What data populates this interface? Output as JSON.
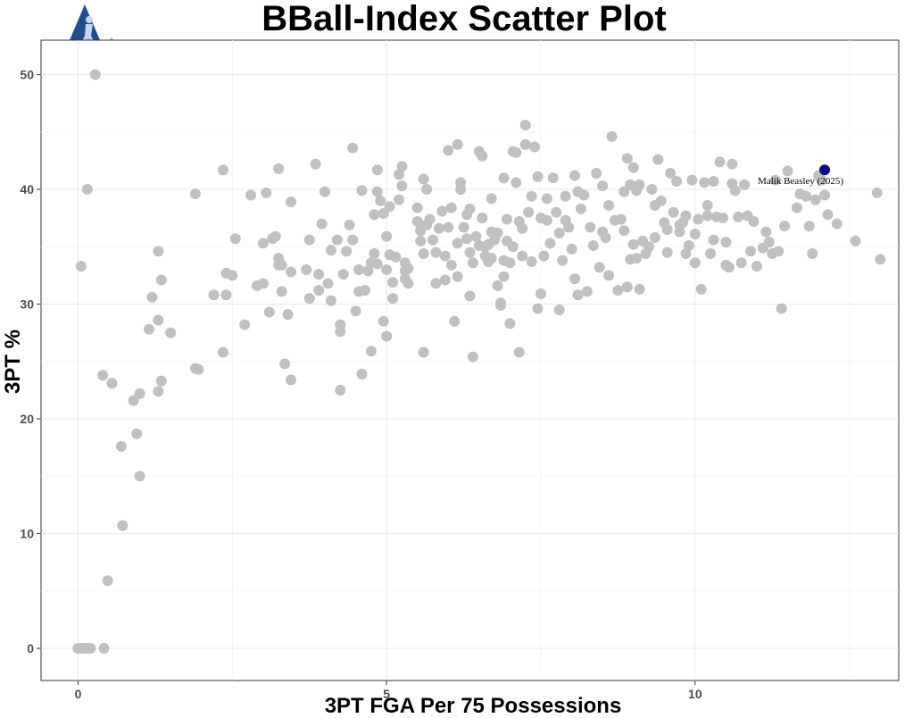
{
  "chart_data": {
    "type": "scatter",
    "title": "BBall-Index Scatter Plot",
    "xlabel": "3PT FGA Per 75 Possessions",
    "ylabel": "3PT %",
    "xlim": [
      -0.6,
      13.3
    ],
    "ylim": [
      -2.8,
      53
    ],
    "x_ticks": [
      0,
      5,
      10
    ],
    "y_ticks": [
      0,
      10,
      20,
      30,
      40,
      50
    ],
    "grid": true,
    "legend": "none",
    "colors": {
      "points": "#c0c0c0",
      "highlight": "#0d0d85",
      "logo_shield": "#1f4e8c",
      "logo_triangle": "#9e9e9e"
    },
    "highlight": {
      "label": "Malik Beasley (2025)",
      "x": 12.1,
      "y": 41.7
    },
    "points": [
      [
        0.0,
        0
      ],
      [
        0.05,
        0
      ],
      [
        0.1,
        0
      ],
      [
        0.15,
        0
      ],
      [
        0.2,
        0
      ],
      [
        0.1,
        0
      ],
      [
        0.42,
        0
      ],
      [
        0.05,
        33.3
      ],
      [
        0.15,
        40.0
      ],
      [
        0.28,
        50.0
      ],
      [
        0.48,
        5.9
      ],
      [
        0.72,
        10.7
      ],
      [
        1.0,
        15.0
      ],
      [
        0.95,
        18.7
      ],
      [
        0.7,
        17.6
      ],
      [
        0.9,
        21.6
      ],
      [
        1.0,
        22.2
      ],
      [
        0.55,
        23.1
      ],
      [
        0.4,
        23.8
      ],
      [
        1.3,
        22.4
      ],
      [
        1.35,
        23.3
      ],
      [
        1.3,
        28.6
      ],
      [
        1.15,
        27.8
      ],
      [
        1.5,
        27.5
      ],
      [
        1.2,
        30.6
      ],
      [
        1.35,
        32.1
      ],
      [
        1.3,
        34.6
      ],
      [
        1.9,
        24.4
      ],
      [
        1.95,
        24.3
      ],
      [
        1.9,
        39.6
      ],
      [
        2.35,
        41.7
      ],
      [
        2.2,
        30.8
      ],
      [
        2.4,
        30.8
      ],
      [
        2.4,
        32.7
      ],
      [
        2.5,
        32.5
      ],
      [
        2.55,
        35.7
      ],
      [
        2.35,
        25.8
      ],
      [
        2.7,
        28.2
      ],
      [
        2.8,
        39.5
      ],
      [
        2.9,
        31.6
      ],
      [
        3.0,
        35.3
      ],
      [
        3.0,
        31.8
      ],
      [
        3.05,
        39.7
      ],
      [
        3.1,
        29.3
      ],
      [
        3.15,
        35.7
      ],
      [
        3.2,
        35.9
      ],
      [
        3.25,
        34.0
      ],
      [
        3.3,
        33.4
      ],
      [
        3.25,
        33.4
      ],
      [
        3.3,
        31.1
      ],
      [
        3.25,
        41.8
      ],
      [
        3.4,
        29.1
      ],
      [
        3.45,
        32.8
      ],
      [
        3.45,
        38.9
      ],
      [
        3.35,
        24.8
      ],
      [
        3.45,
        23.4
      ],
      [
        3.7,
        33.0
      ],
      [
        3.75,
        35.6
      ],
      [
        3.75,
        30.5
      ],
      [
        3.85,
        42.2
      ],
      [
        3.9,
        31.2
      ],
      [
        3.9,
        32.6
      ],
      [
        3.95,
        37.0
      ],
      [
        4.0,
        39.8
      ],
      [
        4.05,
        31.8
      ],
      [
        4.1,
        30.3
      ],
      [
        4.1,
        34.7
      ],
      [
        4.2,
        35.6
      ],
      [
        4.25,
        27.6
      ],
      [
        4.25,
        28.2
      ],
      [
        4.25,
        22.5
      ],
      [
        4.3,
        32.6
      ],
      [
        4.35,
        34.6
      ],
      [
        4.4,
        36.9
      ],
      [
        4.45,
        35.6
      ],
      [
        4.45,
        43.6
      ],
      [
        4.5,
        29.4
      ],
      [
        4.55,
        31.1
      ],
      [
        4.55,
        33.0
      ],
      [
        4.6,
        39.9
      ],
      [
        4.6,
        23.9
      ],
      [
        4.65,
        31.2
      ],
      [
        4.7,
        32.9
      ],
      [
        4.75,
        25.9
      ],
      [
        4.75,
        33.6
      ],
      [
        4.8,
        34.4
      ],
      [
        4.85,
        33.5
      ],
      [
        4.8,
        37.8
      ],
      [
        4.85,
        39.8
      ],
      [
        4.85,
        41.7
      ],
      [
        4.9,
        39.0
      ],
      [
        4.95,
        37.9
      ],
      [
        4.95,
        28.5
      ],
      [
        5.0,
        27.2
      ],
      [
        5.0,
        35.9
      ],
      [
        5.0,
        33.0
      ],
      [
        5.05,
        38.5
      ],
      [
        5.1,
        31.9
      ],
      [
        5.05,
        34.3
      ],
      [
        5.1,
        30.5
      ],
      [
        5.15,
        34.1
      ],
      [
        5.2,
        39.1
      ],
      [
        5.2,
        41.3
      ],
      [
        5.25,
        42.0
      ],
      [
        5.25,
        40.3
      ],
      [
        5.3,
        32.2
      ],
      [
        5.3,
        32.9
      ],
      [
        5.35,
        31.8
      ],
      [
        5.35,
        33.1
      ],
      [
        5.3,
        33.6
      ],
      [
        5.5,
        38.4
      ],
      [
        5.5,
        37.2
      ],
      [
        5.55,
        36.4
      ],
      [
        5.55,
        35.5
      ],
      [
        5.6,
        34.4
      ],
      [
        5.6,
        25.8
      ],
      [
        5.6,
        40.9
      ],
      [
        5.65,
        40.0
      ],
      [
        5.65,
        36.9
      ],
      [
        5.7,
        37.4
      ],
      [
        5.75,
        35.6
      ],
      [
        5.8,
        31.8
      ],
      [
        5.8,
        34.5
      ],
      [
        5.85,
        36.6
      ],
      [
        5.9,
        38.1
      ],
      [
        5.95,
        32.1
      ],
      [
        5.95,
        34.2
      ],
      [
        6.0,
        36.7
      ],
      [
        6.0,
        43.4
      ],
      [
        6.05,
        38.4
      ],
      [
        6.05,
        33.4
      ],
      [
        6.1,
        28.5
      ],
      [
        6.15,
        32.4
      ],
      [
        6.15,
        35.3
      ],
      [
        6.15,
        43.9
      ],
      [
        6.2,
        40.0
      ],
      [
        6.2,
        40.6
      ],
      [
        6.25,
        36.7
      ],
      [
        6.3,
        35.7
      ],
      [
        6.3,
        37.8
      ],
      [
        6.35,
        34.5
      ],
      [
        6.35,
        38.3
      ],
      [
        6.35,
        30.7
      ],
      [
        6.4,
        25.4
      ],
      [
        6.4,
        33.6
      ],
      [
        6.45,
        35.9
      ],
      [
        6.5,
        35.1
      ],
      [
        6.5,
        43.3
      ],
      [
        6.55,
        37.5
      ],
      [
        6.55,
        42.9
      ],
      [
        6.6,
        34.2
      ],
      [
        6.6,
        35.0
      ],
      [
        6.65,
        33.7
      ],
      [
        6.65,
        35.2
      ],
      [
        6.7,
        36.3
      ],
      [
        6.7,
        34.0
      ],
      [
        6.7,
        39.2
      ],
      [
        6.75,
        35.6
      ],
      [
        6.8,
        36.2
      ],
      [
        6.8,
        31.6
      ],
      [
        6.85,
        30.1
      ],
      [
        6.85,
        29.9
      ],
      [
        6.9,
        32.4
      ],
      [
        6.9,
        33.8
      ],
      [
        6.9,
        41.0
      ],
      [
        6.95,
        35.5
      ],
      [
        6.95,
        37.4
      ],
      [
        7.0,
        28.3
      ],
      [
        7.0,
        33.6
      ],
      [
        7.05,
        35.0
      ],
      [
        7.05,
        43.3
      ],
      [
        7.1,
        43.2
      ],
      [
        7.1,
        40.6
      ],
      [
        7.15,
        25.8
      ],
      [
        7.15,
        37.2
      ],
      [
        7.2,
        36.6
      ],
      [
        7.2,
        34.2
      ],
      [
        7.25,
        43.9
      ],
      [
        7.25,
        45.6
      ],
      [
        7.3,
        38.0
      ],
      [
        7.35,
        33.7
      ],
      [
        7.35,
        39.4
      ],
      [
        7.4,
        43.7
      ],
      [
        7.45,
        41.1
      ],
      [
        7.45,
        29.6
      ],
      [
        7.5,
        30.9
      ],
      [
        7.5,
        37.5
      ],
      [
        7.55,
        34.2
      ],
      [
        7.6,
        39.2
      ],
      [
        7.6,
        37.3
      ],
      [
        7.65,
        35.3
      ],
      [
        7.7,
        41.0
      ],
      [
        7.75,
        38.0
      ],
      [
        7.8,
        36.2
      ],
      [
        7.8,
        29.5
      ],
      [
        7.85,
        33.8
      ],
      [
        7.9,
        37.3
      ],
      [
        7.9,
        39.4
      ],
      [
        7.95,
        36.7
      ],
      [
        8.0,
        34.8
      ],
      [
        8.05,
        41.2
      ],
      [
        8.05,
        32.2
      ],
      [
        8.1,
        30.8
      ],
      [
        8.1,
        39.8
      ],
      [
        8.15,
        38.3
      ],
      [
        8.2,
        39.5
      ],
      [
        8.25,
        31.1
      ],
      [
        8.3,
        36.7
      ],
      [
        8.35,
        35.1
      ],
      [
        8.4,
        41.4
      ],
      [
        8.45,
        33.2
      ],
      [
        8.5,
        40.3
      ],
      [
        8.5,
        36.3
      ],
      [
        8.55,
        35.8
      ],
      [
        8.6,
        32.5
      ],
      [
        8.6,
        38.6
      ],
      [
        8.65,
        44.6
      ],
      [
        8.7,
        37.3
      ],
      [
        8.75,
        31.2
      ],
      [
        8.8,
        37.4
      ],
      [
        8.85,
        39.8
      ],
      [
        8.85,
        36.4
      ],
      [
        8.9,
        31.5
      ],
      [
        8.9,
        42.7
      ],
      [
        8.95,
        33.9
      ],
      [
        8.95,
        40.4
      ],
      [
        9.0,
        35.2
      ],
      [
        9.0,
        41.9
      ],
      [
        9.05,
        39.9
      ],
      [
        9.05,
        34.0
      ],
      [
        9.1,
        40.4
      ],
      [
        9.1,
        31.3
      ],
      [
        9.15,
        35.5
      ],
      [
        9.2,
        34.4
      ],
      [
        9.25,
        35.0
      ],
      [
        9.3,
        40.0
      ],
      [
        9.35,
        38.6
      ],
      [
        9.35,
        35.8
      ],
      [
        9.4,
        42.6
      ],
      [
        9.45,
        39.0
      ],
      [
        9.5,
        37.1
      ],
      [
        9.55,
        34.5
      ],
      [
        9.55,
        36.5
      ],
      [
        9.6,
        41.4
      ],
      [
        9.65,
        38.0
      ],
      [
        9.7,
        40.7
      ],
      [
        9.75,
        36.9
      ],
      [
        9.75,
        36.3
      ],
      [
        9.8,
        37.1
      ],
      [
        9.85,
        34.4
      ],
      [
        9.85,
        37.7
      ],
      [
        9.9,
        35.1
      ],
      [
        9.95,
        40.8
      ],
      [
        10.0,
        36.1
      ],
      [
        10.0,
        33.6
      ],
      [
        10.05,
        37.4
      ],
      [
        10.1,
        31.3
      ],
      [
        10.15,
        40.6
      ],
      [
        10.2,
        38.6
      ],
      [
        10.2,
        37.7
      ],
      [
        10.25,
        34.4
      ],
      [
        10.3,
        40.7
      ],
      [
        10.3,
        35.6
      ],
      [
        10.35,
        37.6
      ],
      [
        10.4,
        42.4
      ],
      [
        10.45,
        37.5
      ],
      [
        10.5,
        35.4
      ],
      [
        10.5,
        33.4
      ],
      [
        10.55,
        33.2
      ],
      [
        10.6,
        42.2
      ],
      [
        10.6,
        40.5
      ],
      [
        10.65,
        39.9
      ],
      [
        10.7,
        37.6
      ],
      [
        10.75,
        33.6
      ],
      [
        10.8,
        40.4
      ],
      [
        10.85,
        37.7
      ],
      [
        10.9,
        34.6
      ],
      [
        10.95,
        37.2
      ],
      [
        11.0,
        33.3
      ],
      [
        11.1,
        34.9
      ],
      [
        11.15,
        36.3
      ],
      [
        11.2,
        35.4
      ],
      [
        11.25,
        34.4
      ],
      [
        11.3,
        40.8
      ],
      [
        11.35,
        34.6
      ],
      [
        11.4,
        29.6
      ],
      [
        11.45,
        36.8
      ],
      [
        11.5,
        41.6
      ],
      [
        11.65,
        38.4
      ],
      [
        11.7,
        39.6
      ],
      [
        11.8,
        39.4
      ],
      [
        11.85,
        36.8
      ],
      [
        11.9,
        34.4
      ],
      [
        11.95,
        39.1
      ],
      [
        12.0,
        41.2
      ],
      [
        12.05,
        40.8
      ],
      [
        12.1,
        39.5
      ],
      [
        12.15,
        37.8
      ],
      [
        12.3,
        37.0
      ],
      [
        12.6,
        35.5
      ],
      [
        12.95,
        39.7
      ],
      [
        13.0,
        33.9
      ]
    ]
  }
}
